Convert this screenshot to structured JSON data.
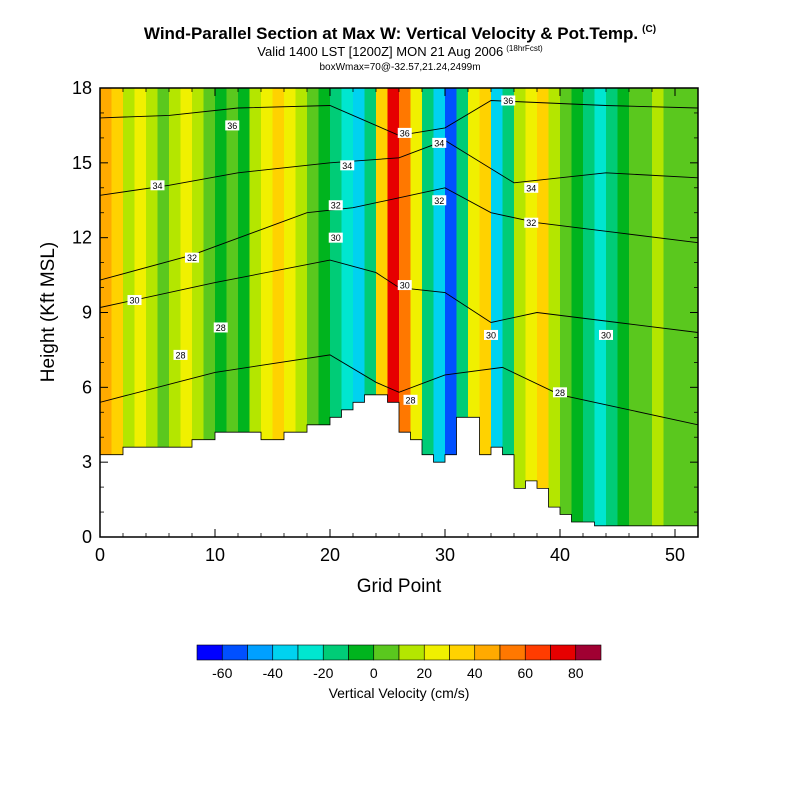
{
  "header": {
    "title": "Wind-Parallel Section at Max W: Vertical Velocity & Pot.Temp.",
    "copyright": "(C)",
    "valid": "Valid 1400 LST [1200Z] MON 21 Aug 2006",
    "forecast": "(18hrFcst)",
    "box_info": "boxWmax=70@-32.57,21.24,2499m"
  },
  "chart_data": {
    "type": "heatmap",
    "title": "Wind-Parallel Section at Max W: Vertical Velocity & Pot.Temp.",
    "xlabel": "Grid Point",
    "ylabel": "Height (Kft MSL)",
    "xlim": [
      0,
      52
    ],
    "ylim": [
      0,
      18
    ],
    "x_ticks": [
      0,
      10,
      20,
      30,
      40,
      50
    ],
    "x_tick_labels": [
      "0",
      "10",
      "20",
      "30",
      "40",
      "50"
    ],
    "y_ticks": [
      0,
      3,
      6,
      9,
      12,
      15,
      18
    ],
    "y_tick_labels": [
      "0",
      "3",
      "6",
      "9",
      "12",
      "15",
      "18"
    ],
    "terrain": {
      "x": [
        0,
        2,
        2,
        4,
        4,
        8,
        8,
        10,
        10,
        14,
        14,
        16,
        16,
        18,
        18,
        20,
        20,
        21,
        21,
        22,
        22,
        23,
        23,
        24,
        24,
        25,
        25,
        26,
        26,
        27,
        27,
        28,
        28,
        29,
        29,
        30,
        30,
        31,
        31,
        32,
        32,
        33,
        33,
        34,
        34,
        35,
        35,
        36,
        36,
        37,
        37,
        38,
        38,
        39,
        39,
        40,
        40,
        41,
        41,
        43,
        43,
        45,
        45,
        52
      ],
      "y": [
        3.3,
        3.3,
        3.6,
        3.6,
        3.6,
        3.6,
        3.9,
        3.9,
        4.2,
        4.2,
        3.9,
        3.9,
        4.2,
        4.2,
        4.5,
        4.5,
        4.8,
        4.8,
        5.1,
        5.1,
        5.4,
        5.4,
        5.7,
        5.7,
        5.7,
        5.7,
        5.4,
        5.4,
        4.2,
        4.2,
        3.9,
        3.9,
        3.3,
        3.3,
        3.0,
        3.0,
        3.3,
        3.3,
        4.8,
        4.8,
        4.8,
        4.8,
        3.3,
        3.3,
        3.6,
        3.6,
        3.3,
        3.3,
        1.95,
        1.95,
        2.25,
        2.25,
        1.95,
        1.95,
        1.2,
        1.2,
        0.9,
        0.9,
        0.6,
        0.6,
        0.45,
        0.45,
        0.45,
        0.45
      ]
    },
    "vertical_velocity_bands": [
      {
        "x": 0,
        "w": 45
      },
      {
        "x": 1,
        "w": 30
      },
      {
        "x": 2,
        "w": 15
      },
      {
        "x": 3,
        "w": 20
      },
      {
        "x": 4,
        "w": 10
      },
      {
        "x": 5,
        "w": 0
      },
      {
        "x": 6,
        "w": 10
      },
      {
        "x": 7,
        "w": 20
      },
      {
        "x": 8,
        "w": 10
      },
      {
        "x": 9,
        "w": 0
      },
      {
        "x": 10,
        "w": -10
      },
      {
        "x": 11,
        "w": 0
      },
      {
        "x": 12,
        "w": -10
      },
      {
        "x": 13,
        "w": 10
      },
      {
        "x": 14,
        "w": 20
      },
      {
        "x": 15,
        "w": 30
      },
      {
        "x": 16,
        "w": 20
      },
      {
        "x": 17,
        "w": 10
      },
      {
        "x": 18,
        "w": 0
      },
      {
        "x": 19,
        "w": -10
      },
      {
        "x": 20,
        "w": -20
      },
      {
        "x": 21,
        "w": -30
      },
      {
        "x": 22,
        "w": -40
      },
      {
        "x": 23,
        "w": -20
      },
      {
        "x": 24,
        "w": 30
      },
      {
        "x": 25,
        "w": 70
      },
      {
        "x": 26,
        "w": 50
      },
      {
        "x": 27,
        "w": 20
      },
      {
        "x": 28,
        "w": -20
      },
      {
        "x": 29,
        "w": -40
      },
      {
        "x": 30,
        "w": -60
      },
      {
        "x": 31,
        "w": -20
      },
      {
        "x": 32,
        "w": 20
      },
      {
        "x": 33,
        "w": 30
      },
      {
        "x": 34,
        "w": -40
      },
      {
        "x": 35,
        "w": -20
      },
      {
        "x": 36,
        "w": 10
      },
      {
        "x": 37,
        "w": 20
      },
      {
        "x": 38,
        "w": 30
      },
      {
        "x": 39,
        "w": 10
      },
      {
        "x": 40,
        "w": 0
      },
      {
        "x": 41,
        "w": -10
      },
      {
        "x": 42,
        "w": -20
      },
      {
        "x": 43,
        "w": -30
      },
      {
        "x": 44,
        "w": -20
      },
      {
        "x": 45,
        "w": -10
      },
      {
        "x": 46,
        "w": 0
      },
      {
        "x": 47,
        "w": 0
      },
      {
        "x": 48,
        "w": 10
      },
      {
        "x": 49,
        "w": 0
      },
      {
        "x": 50,
        "w": 0
      },
      {
        "x": 51,
        "w": 0
      }
    ],
    "theta_contours": [
      {
        "label": "28",
        "points": [
          [
            0,
            5.4
          ],
          [
            10,
            6.6
          ],
          [
            20,
            7.3
          ],
          [
            24,
            6.2
          ],
          [
            26,
            5.8
          ],
          [
            30,
            6.5
          ],
          [
            35,
            6.8
          ],
          [
            40,
            5.7
          ],
          [
            45,
            5.2
          ],
          [
            52,
            4.5
          ]
        ]
      },
      {
        "label": "30",
        "points": [
          [
            0,
            9.2
          ],
          [
            10,
            10.2
          ],
          [
            20,
            11.1
          ],
          [
            24,
            10.6
          ],
          [
            26,
            10.0
          ],
          [
            30,
            9.8
          ],
          [
            34,
            8.6
          ],
          [
            38,
            9.0
          ],
          [
            45,
            8.6
          ],
          [
            52,
            8.2
          ]
        ]
      },
      {
        "label": "32",
        "points": [
          [
            0,
            10.3
          ],
          [
            8,
            11.3
          ],
          [
            18,
            13.0
          ],
          [
            22,
            13.2
          ],
          [
            26,
            13.6
          ],
          [
            30,
            14.0
          ],
          [
            34,
            13.0
          ],
          [
            38,
            12.6
          ],
          [
            45,
            12.2
          ],
          [
            52,
            11.8
          ]
        ]
      },
      {
        "label": "34",
        "points": [
          [
            0,
            13.7
          ],
          [
            6,
            14.1
          ],
          [
            12,
            14.6
          ],
          [
            20,
            15.0
          ],
          [
            26,
            15.2
          ],
          [
            30,
            15.9
          ],
          [
            36,
            14.2
          ],
          [
            44,
            14.6
          ],
          [
            52,
            14.4
          ]
        ]
      },
      {
        "label": "36",
        "points": [
          [
            0,
            16.8
          ],
          [
            6,
            16.9
          ],
          [
            12,
            17.2
          ],
          [
            20,
            17.3
          ],
          [
            26,
            16.1
          ],
          [
            30,
            16.4
          ],
          [
            34,
            17.5
          ],
          [
            44,
            17.3
          ],
          [
            52,
            17.2
          ]
        ]
      }
    ],
    "contour_labels": [
      {
        "text": "36",
        "x": 11.5,
        "y": 16.5
      },
      {
        "text": "34",
        "x": 5,
        "y": 14.1
      },
      {
        "text": "34",
        "x": 21.5,
        "y": 14.9
      },
      {
        "text": "36",
        "x": 26.5,
        "y": 16.2
      },
      {
        "text": "34",
        "x": 29.5,
        "y": 15.8
      },
      {
        "text": "36",
        "x": 35.5,
        "y": 17.5
      },
      {
        "text": "34",
        "x": 37.5,
        "y": 14.0
      },
      {
        "text": "32",
        "x": 20.5,
        "y": 13.3
      },
      {
        "text": "32",
        "x": 29.5,
        "y": 13.5
      },
      {
        "text": "32",
        "x": 37.5,
        "y": 12.6
      },
      {
        "text": "32",
        "x": 8,
        "y": 11.2
      },
      {
        "text": "30",
        "x": 20.5,
        "y": 12.0
      },
      {
        "text": "30",
        "x": 26.5,
        "y": 10.1
      },
      {
        "text": "30",
        "x": 3,
        "y": 9.5
      },
      {
        "text": "28",
        "x": 10.5,
        "y": 8.4
      },
      {
        "text": "28",
        "x": 7,
        "y": 7.3
      },
      {
        "text": "30",
        "x": 34,
        "y": 8.1
      },
      {
        "text": "30",
        "x": 44,
        "y": 8.1
      },
      {
        "text": "28",
        "x": 27,
        "y": 5.5
      },
      {
        "text": "28",
        "x": 40,
        "y": 5.8
      }
    ],
    "colorbar": {
      "title": "Vertical Velocity (cm/s)",
      "bins": [
        {
          "lower": -70,
          "upper": -60,
          "color": "#0000ff"
        },
        {
          "lower": -60,
          "upper": -50,
          "color": "#0050ff"
        },
        {
          "lower": -50,
          "upper": -40,
          "color": "#00a0ff"
        },
        {
          "lower": -40,
          "upper": -30,
          "color": "#00d2f0"
        },
        {
          "lower": -30,
          "upper": -20,
          "color": "#00e6d0"
        },
        {
          "lower": -20,
          "upper": -10,
          "color": "#00cc77"
        },
        {
          "lower": -10,
          "upper": 0,
          "color": "#00b41e"
        },
        {
          "lower": 0,
          "upper": 10,
          "color": "#5ac81e"
        },
        {
          "lower": 10,
          "upper": 20,
          "color": "#b4e600"
        },
        {
          "lower": 20,
          "upper": 30,
          "color": "#f0f000"
        },
        {
          "lower": 30,
          "upper": 40,
          "color": "#ffd200"
        },
        {
          "lower": 40,
          "upper": 50,
          "color": "#ffaa00"
        },
        {
          "lower": 50,
          "upper": 60,
          "color": "#ff7800"
        },
        {
          "lower": 60,
          "upper": 70,
          "color": "#ff3c00"
        },
        {
          "lower": 70,
          "upper": 80,
          "color": "#e60000"
        },
        {
          "lower": 80,
          "upper": 90,
          "color": "#a00032"
        }
      ],
      "tick_values": [
        -60,
        -40,
        -20,
        0,
        20,
        40,
        60,
        80
      ],
      "tick_labels": [
        "-60",
        "-40",
        "-20",
        "0",
        "20",
        "40",
        "60",
        "80"
      ]
    }
  }
}
